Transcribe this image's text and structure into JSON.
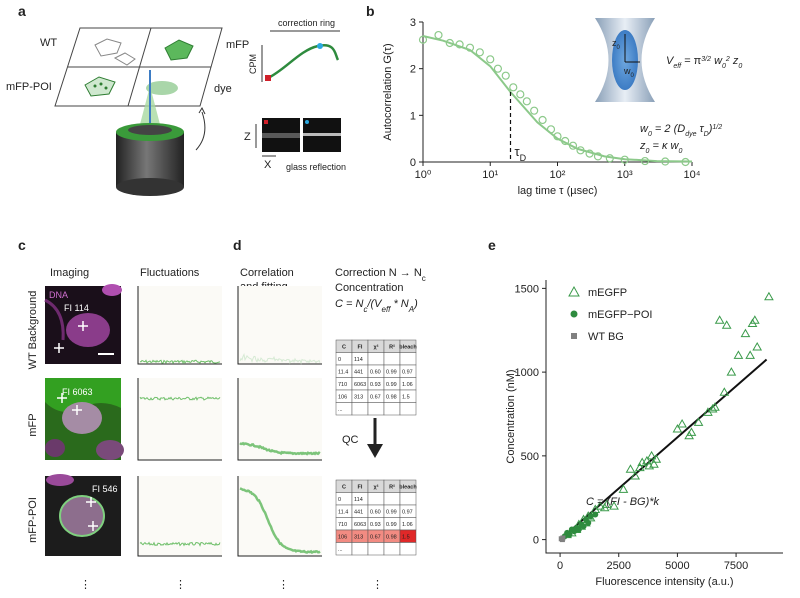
{
  "panel_labels": [
    "a",
    "b",
    "c",
    "d",
    "e"
  ],
  "panel_a": {
    "wells": [
      "WT",
      "mFP",
      "mFP-POI",
      "dye"
    ],
    "correction_ring": "correction ring",
    "cpm": "CPM",
    "z": "Z",
    "x": "X",
    "glass_reflection": "glass reflection"
  },
  "panel_b_model": {
    "z_label": [
      "z",
      "0"
    ],
    "w_label": [
      "w",
      "0"
    ],
    "veff": [
      "V",
      "eff",
      " = π",
      "3/2",
      " w",
      "0",
      "2",
      " z",
      "0"
    ],
    "w0_eq": [
      "w",
      "0",
      " = 2 (D",
      "dye",
      " τ",
      "D",
      ")",
      "1/2"
    ],
    "z0_eq": [
      "z",
      "0",
      " = κ w",
      "0"
    ]
  },
  "panel_c": {
    "columns": [
      "Imaging",
      "Fluctuations"
    ],
    "rows": [
      "WT Background",
      "mFP",
      "mFP-POI"
    ],
    "dna": "DNA",
    "fi": [
      "FI 114",
      "FI 6063",
      "FI 546"
    ],
    "more": "⋮"
  },
  "panel_d": {
    "column": [
      "Correlation",
      "and fitting"
    ],
    "correction": [
      "Correction N → N",
      "c"
    ],
    "concentration": "Concentration",
    "formula": [
      "C = N",
      "c",
      "/(V",
      "eff",
      " * N",
      "A",
      ")"
    ],
    "qc": "QC",
    "tables": [
      {
        "header": [
          "C",
          "FI",
          "χ²",
          "R²",
          "bleach"
        ],
        "rows": [
          [
            "0",
            "114"
          ],
          [
            "11.4",
            "441",
            "0.60",
            "0.99",
            "0.97"
          ],
          [
            "710",
            "6063",
            "0.93",
            "0.99",
            "1.06"
          ],
          [
            "106",
            "313",
            "0.67",
            "0.98",
            "1.5"
          ],
          [
            "..."
          ]
        ]
      },
      {
        "header": [
          "C",
          "FI",
          "χ²",
          "R²",
          "bleach"
        ],
        "rows": [
          [
            "0",
            "114"
          ],
          [
            "11.4",
            "441",
            "0.60",
            "0.99",
            "0.97"
          ],
          [
            "710",
            "6063",
            "0.93",
            "0.99",
            "1.06"
          ],
          [
            "106",
            "313",
            "0.67",
            "0.98",
            "1.5"
          ],
          [
            "..."
          ]
        ],
        "highlight_row": 3
      }
    ]
  },
  "chart_data": [
    {
      "type": "line",
      "xlabel": "lag time τ (µsec)",
      "ylabel": "Autocorrelation G(τ)",
      "xlog": true,
      "xlim": [
        1,
        10000
      ],
      "xticks": [
        {
          "value": 1,
          "label": "10⁰"
        },
        {
          "value": 10,
          "label": "10¹"
        },
        {
          "value": 100,
          "label": "10²"
        },
        {
          "value": 1000,
          "label": "10³"
        },
        {
          "value": 10000,
          "label": "10⁴"
        }
      ],
      "ylim": [
        0,
        3
      ],
      "yticks": [
        0,
        1,
        2,
        3
      ],
      "series": [
        {
          "marker": "circle",
          "color": "#8cc98a",
          "x": [
            1,
            1.7,
            2.5,
            3.5,
            5,
            7,
            10,
            13,
            17,
            22,
            28,
            35,
            45,
            60,
            80,
            100,
            130,
            170,
            220,
            300,
            400,
            600,
            1000,
            2000,
            4000,
            8000
          ],
          "values": [
            2.62,
            2.72,
            2.55,
            2.52,
            2.45,
            2.35,
            2.2,
            2.0,
            1.85,
            1.6,
            1.45,
            1.3,
            1.1,
            0.9,
            0.7,
            0.55,
            0.45,
            0.35,
            0.25,
            0.18,
            0.12,
            0.08,
            0.05,
            0.02,
            0.01,
            0.0
          ]
        },
        {
          "marker": "line",
          "color": "#8cc98a",
          "x": [
            1,
            2,
            5,
            10,
            20,
            50,
            100,
            200,
            500,
            1000,
            3000,
            10000
          ],
          "values": [
            2.7,
            2.6,
            2.4,
            2.05,
            1.5,
            0.85,
            0.5,
            0.28,
            0.12,
            0.06,
            0.02,
            0.01
          ]
        }
      ],
      "annotation": {
        "x": 20,
        "y": 1.5,
        "text": [
          "τ",
          "D"
        ]
      }
    },
    {
      "type": "scatter",
      "xlabel": "Fluorescence intensity (a.u.)",
      "ylabel": "Concentration (nM)",
      "xlim": [
        -600,
        9500
      ],
      "xticks": [
        0,
        2500,
        5000,
        7500
      ],
      "ylim": [
        -80,
        1550
      ],
      "yticks": [
        0,
        500,
        1000,
        1500
      ],
      "legend": "top-left",
      "series": [
        {
          "name": "mEGFP",
          "marker": "triangle",
          "color": "#3a9a4a",
          "x": [
            300,
            500,
            700,
            800,
            900,
            1000,
            1100,
            1200,
            1300,
            1500,
            1700,
            1900,
            2000,
            2300,
            2700,
            3000,
            3200,
            3400,
            3500,
            3700,
            3800,
            3900,
            4000,
            4100,
            5000,
            5200,
            5500,
            5600,
            5900,
            6300,
            6500,
            6600,
            6800,
            7000,
            7100,
            7300,
            7600,
            7900,
            8100,
            8200,
            8300,
            8400,
            8900
          ],
          "values": [
            30,
            40,
            60,
            90,
            80,
            120,
            100,
            140,
            130,
            180,
            200,
            190,
            210,
            200,
            300,
            420,
            380,
            430,
            460,
            470,
            440,
            500,
            450,
            480,
            660,
            690,
            620,
            640,
            700,
            760,
            780,
            790,
            1310,
            880,
            1280,
            1000,
            1100,
            1230,
            1100,
            1290,
            1310,
            1150,
            1450
          ]
        },
        {
          "name": "mEGFP−POI",
          "marker": "circle",
          "color": "#2e8b3e",
          "x": [
            200,
            300,
            400,
            500,
            600,
            700,
            800,
            900,
            1000,
            1100,
            1200,
            1300,
            1500
          ],
          "values": [
            20,
            40,
            30,
            60,
            50,
            70,
            60,
            90,
            80,
            120,
            100,
            140,
            150
          ]
        },
        {
          "name": "WT BG",
          "marker": "square",
          "color": "#808080",
          "x": [
            50,
            100,
            120
          ],
          "values": [
            5,
            0,
            10
          ]
        }
      ],
      "fit": {
        "x": [
          0,
          8800
        ],
        "values": [
          0,
          1075
        ],
        "color": "#111111"
      },
      "annotation": "C = (FI - BG)*k"
    }
  ]
}
